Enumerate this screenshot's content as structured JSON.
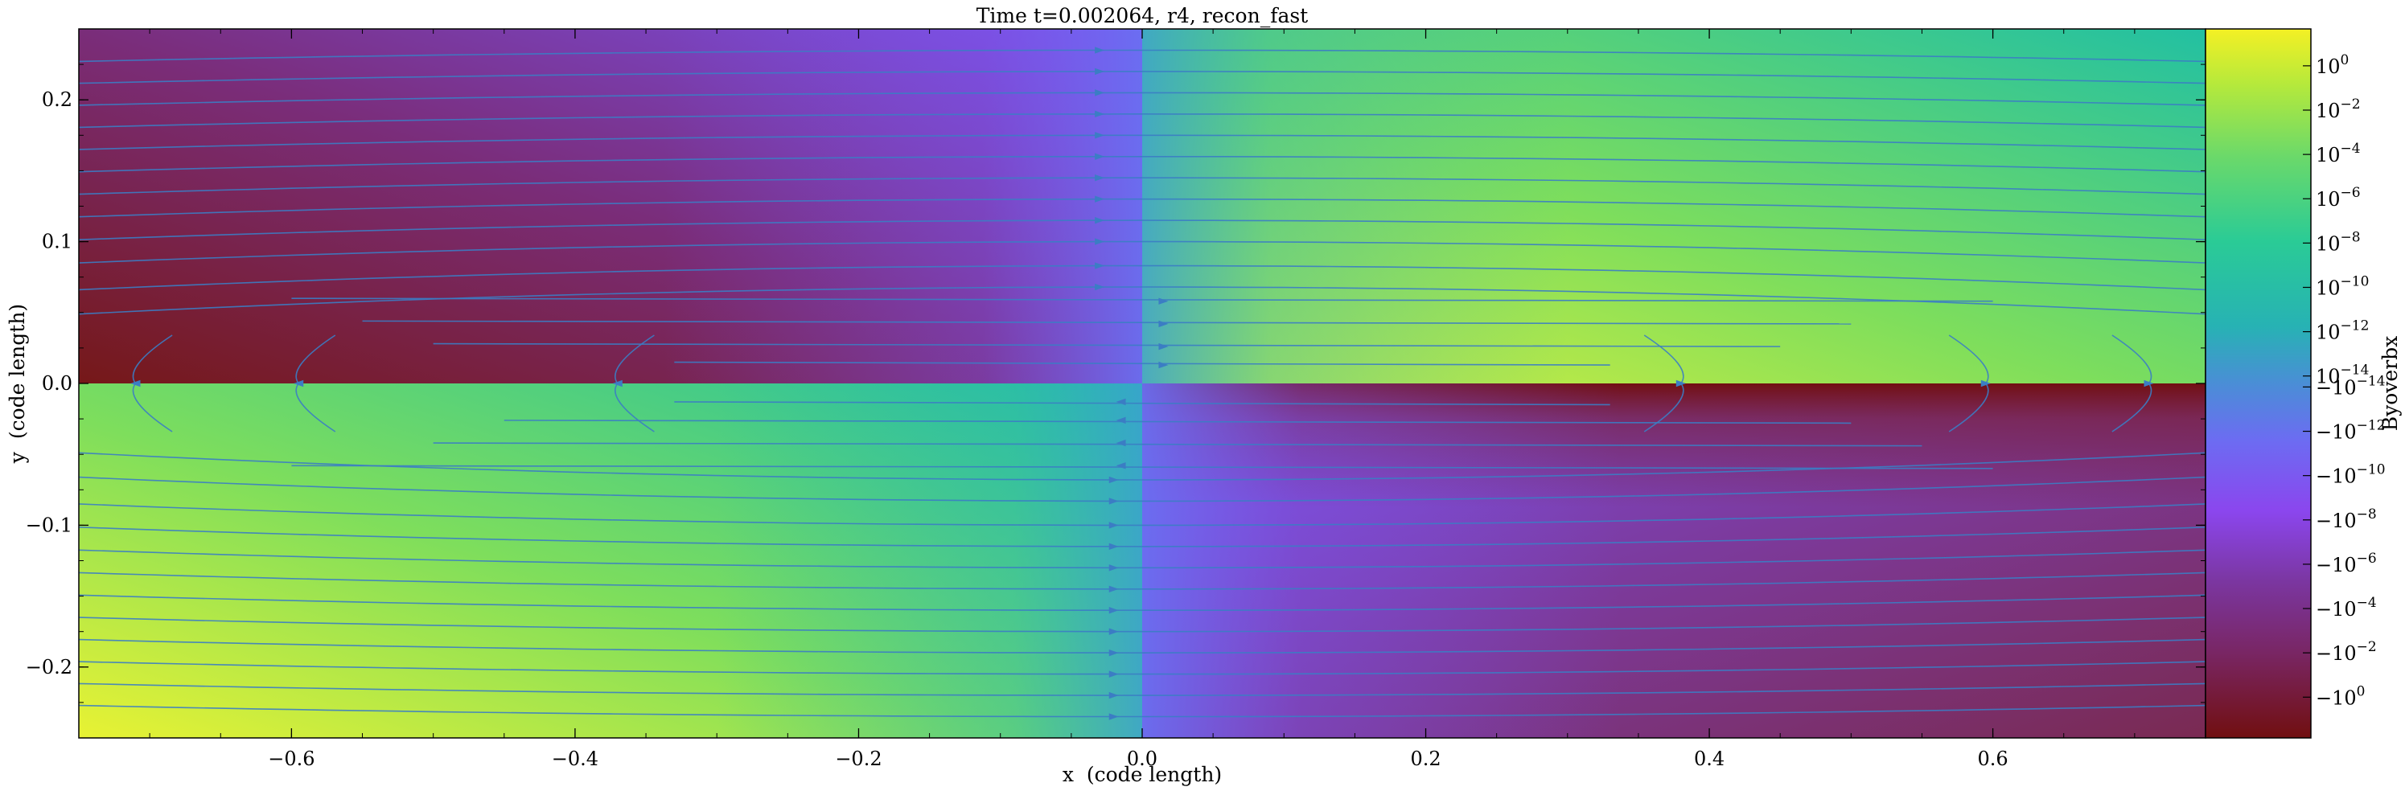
{
  "chart_data": {
    "type": "heatmap",
    "title": "Time t=0.002064, r4, recon_fast",
    "xlabel": "x  (code length)",
    "ylabel": "y  (code length)",
    "xlim": [
      -0.75,
      0.75
    ],
    "ylim": [
      -0.25,
      0.25
    ],
    "xticks": [
      -0.6,
      -0.4,
      -0.2,
      0.0,
      0.2,
      0.4,
      0.6
    ],
    "xtick_labels": [
      "−0.6",
      "−0.4",
      "−0.2",
      "0.0",
      "0.2",
      "0.4",
      "0.6"
    ],
    "yticks": [
      -0.2,
      -0.1,
      0.0,
      0.1,
      0.2
    ],
    "ytick_labels": [
      "−0.2",
      "−0.1",
      "0.0",
      "0.1",
      "0.2"
    ],
    "colorbar": {
      "label": "Byoverbx",
      "scale": "symlog",
      "positive_ticks": [
        {
          "base": "10",
          "exp": "0"
        },
        {
          "base": "10",
          "exp": "−2"
        },
        {
          "base": "10",
          "exp": "−4"
        },
        {
          "base": "10",
          "exp": "−6"
        },
        {
          "base": "10",
          "exp": "−8"
        },
        {
          "base": "10",
          "exp": "−10"
        },
        {
          "base": "10",
          "exp": "−12"
        },
        {
          "base": "10",
          "exp": "−14"
        }
      ],
      "negative_ticks": [
        {
          "base": "−10",
          "exp": "−14"
        },
        {
          "base": "−10",
          "exp": "−12"
        },
        {
          "base": "−10",
          "exp": "−10"
        },
        {
          "base": "−10",
          "exp": "−8"
        },
        {
          "base": "−10",
          "exp": "−6"
        },
        {
          "base": "−10",
          "exp": "−4"
        },
        {
          "base": "−10",
          "exp": "−2"
        },
        {
          "base": "−10",
          "exp": "0"
        }
      ]
    },
    "field_description": "Byoverbx: positive in upper-right and lower-left quadrants, negative in upper-left and lower-right quadrants; magnitude largest near y=0 and smallest near x=0",
    "streamline_color": "#3b7dc4",
    "colormap_positive": [
      "#4a8ed6",
      "#2ab0c8",
      "#22c89c",
      "#4fd877",
      "#9ee54a",
      "#f2f024"
    ],
    "colormap_negative": [
      "#6f6cf2",
      "#8b46f0",
      "#7c3aa6",
      "#7a2a66",
      "#781c3c",
      "#710f10"
    ]
  }
}
